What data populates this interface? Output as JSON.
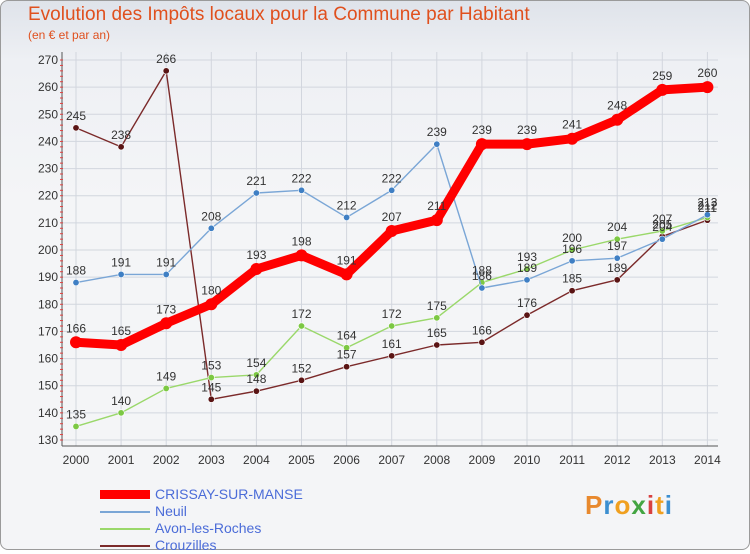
{
  "title": "Evolution des Impôts locaux pour la Commune par Habitant",
  "subtitle": "(en € et par an)",
  "logo": {
    "text": "Proxiti",
    "colors": [
      "#e8892e",
      "#3c8fd0",
      "#f0a020",
      "#43a542",
      "#d84040",
      "#f0a020",
      "#3c8fd0"
    ]
  },
  "chart_data": {
    "type": "line",
    "title": "Evolution des Impôts locaux pour la Commune par Habitant",
    "subtitle": "(en € et par an)",
    "x": [
      "2000",
      "2001",
      "2002",
      "2003",
      "2004",
      "2005",
      "2006",
      "2007",
      "2008",
      "2009",
      "2010",
      "2011",
      "2012",
      "2013",
      "2014"
    ],
    "y_ticks": [
      130,
      140,
      150,
      160,
      170,
      180,
      190,
      200,
      210,
      220,
      230,
      240,
      250,
      260,
      270
    ],
    "ylim": [
      130,
      270
    ],
    "grid": true,
    "legend_position": "bottom-left",
    "series": [
      {
        "name": "Crouzilles",
        "color": "#7b2a2a",
        "marker": "#5a1414",
        "values": [
          245,
          238,
          266,
          145,
          148,
          152,
          157,
          161,
          165,
          166,
          176,
          185,
          189,
          205,
          211
        ],
        "labels": [
          "245",
          "238",
          "266",
          "145",
          "148",
          "152",
          "157",
          "161",
          "165",
          "166",
          "176",
          "185",
          "189",
          "205",
          "211"
        ]
      },
      {
        "name": "Avon-les-Roches",
        "color": "#9ad86a",
        "marker": "#7cc843",
        "values": [
          135,
          140,
          149,
          153,
          154,
          172,
          164,
          172,
          175,
          188,
          193,
          200,
          204,
          207,
          212
        ],
        "labels": [
          "135",
          "140",
          "149",
          "153",
          "154",
          "172",
          "164",
          "172",
          "175",
          "188",
          "193",
          "200",
          "204",
          "207",
          "212"
        ]
      },
      {
        "name": "Neuil",
        "color": "#7aa6d6",
        "marker": "#3f7fc4",
        "values": [
          188,
          191,
          191,
          208,
          221,
          222,
          212,
          222,
          239,
          186,
          189,
          196,
          197,
          204,
          213
        ],
        "labels": [
          "188",
          "191",
          "191",
          "208",
          "221",
          "222",
          "212",
          "222",
          "239",
          "186",
          "189",
          "196",
          "197",
          "204",
          "213"
        ]
      },
      {
        "name": "CRISSAY-SUR-MANSE",
        "color": "#ff0000",
        "marker": "#ff0000",
        "values": [
          166,
          165,
          173,
          180,
          193,
          198,
          191,
          207,
          211,
          239,
          239,
          241,
          248,
          259,
          260
        ],
        "labels": [
          "166",
          "165",
          "173",
          "180",
          "193",
          "198",
          "191",
          "207",
          "211",
          "239",
          "239",
          "241",
          "248",
          "259",
          "260"
        ]
      }
    ],
    "legend": [
      "CRISSAY-SUR-MANSE",
      "Neuil",
      "Avon-les-Roches",
      "Crouzilles"
    ]
  }
}
